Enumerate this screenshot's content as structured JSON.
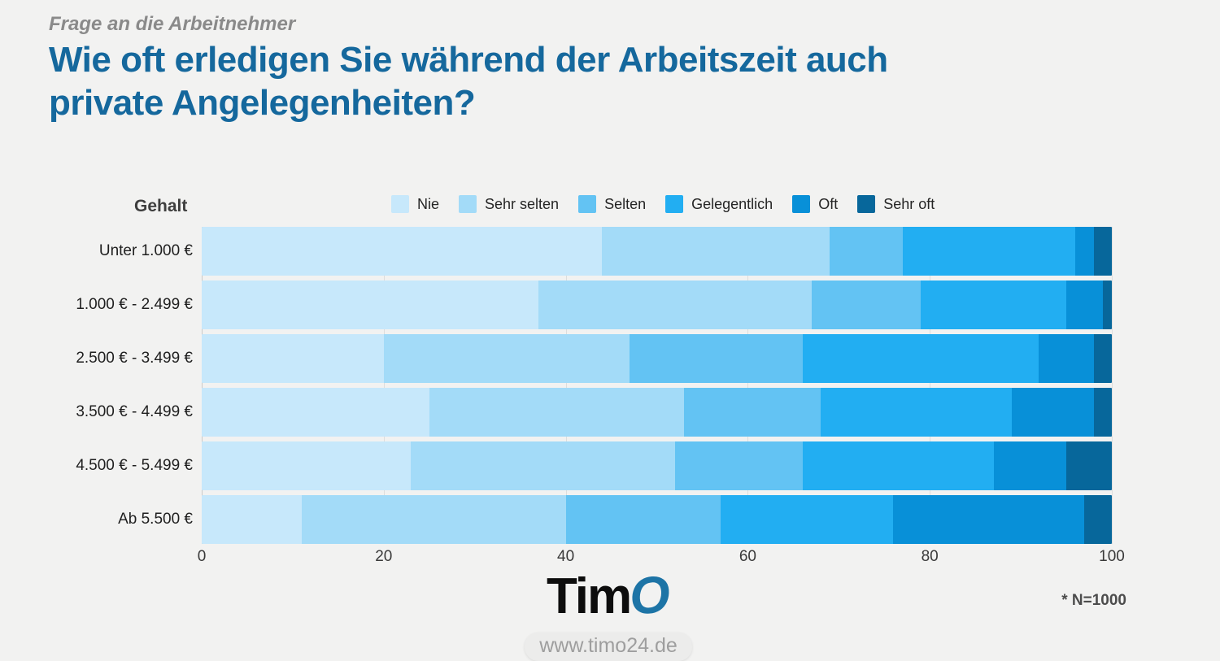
{
  "header": {
    "kicker": "Frage an die Arbeitnehmer",
    "title_lines": [
      "Wie oft erledigen Sie während der Arbeitszeit auch",
      "private Angelegenheiten?"
    ],
    "title_color": "#15689d"
  },
  "chart_data": {
    "type": "bar",
    "stacked": true,
    "orientation": "horizontal",
    "title": "Wie oft erledigen Sie während der Arbeitszeit auch private Angelegenheiten?",
    "ylabel": "Gehalt",
    "xlabel": "",
    "xlim": [
      0,
      100
    ],
    "x_ticks": [
      0,
      20,
      40,
      60,
      80,
      100
    ],
    "grid": true,
    "legend_position": "top",
    "unit": "percent",
    "categories": [
      "Unter 1.000 €",
      "1.000 € - 2.499 €",
      "2.500 € - 3.499 €",
      "3.500 € - 4.499 €",
      "4.500 € - 5.499 €",
      "Ab 5.500 €"
    ],
    "series": [
      {
        "name": "Nie",
        "color": "#c7e8fb",
        "values": [
          44,
          37,
          20,
          25,
          23,
          11
        ]
      },
      {
        "name": "Sehr selten",
        "color": "#a3dbf8",
        "values": [
          25,
          30,
          27,
          28,
          29,
          29
        ]
      },
      {
        "name": "Selten",
        "color": "#63c3f3",
        "values": [
          8,
          12,
          19,
          15,
          14,
          17
        ]
      },
      {
        "name": "Gelegentlich",
        "color": "#22aef2",
        "values": [
          19,
          16,
          26,
          21,
          21,
          19
        ]
      },
      {
        "name": "Oft",
        "color": "#0890d8",
        "values": [
          2,
          4,
          6,
          9,
          8,
          21
        ]
      },
      {
        "name": "Sehr oft",
        "color": "#07679b",
        "values": [
          2,
          1,
          2,
          2,
          5,
          3
        ]
      }
    ]
  },
  "footer": {
    "logo_text": "Tim",
    "logo_o": "O",
    "website": "www.timo24.de",
    "note": "* N=1000"
  }
}
